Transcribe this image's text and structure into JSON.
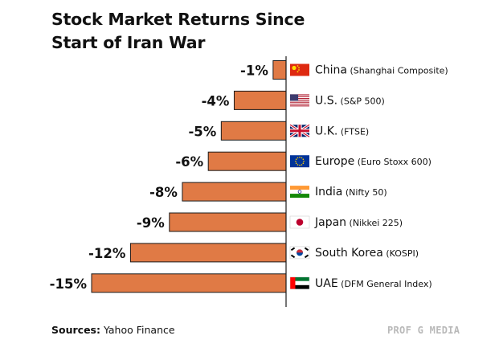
{
  "title": {
    "line1": "Stock Market Returns Since",
    "line2": "Start of Iran War"
  },
  "source": {
    "label": "Sources:",
    "text": "Yahoo Finance"
  },
  "brand": "PROF G MEDIA",
  "colors": {
    "bar": "#e07a45",
    "bar_stroke": "#1a1a1a",
    "axis": "#1a1a1a"
  },
  "chart_data": {
    "type": "bar",
    "orientation": "horizontal",
    "unit": "%",
    "categories": [
      {
        "name": "China",
        "index": "(Shanghai Composite)",
        "flag": "china-flag",
        "label": "-1%"
      },
      {
        "name": "U.S.",
        "index": "(S&P 500)",
        "flag": "us-flag",
        "label": "-4%"
      },
      {
        "name": "U.K.",
        "index": "(FTSE)",
        "flag": "uk-flag",
        "label": "-5%"
      },
      {
        "name": "Europe",
        "index": "(Euro Stoxx 600)",
        "flag": "eu-flag",
        "label": "-6%"
      },
      {
        "name": "India",
        "index": "(Nifty 50)",
        "flag": "india-flag",
        "label": "-8%"
      },
      {
        "name": "Japan",
        "index": "(Nikkei 225)",
        "flag": "japan-flag",
        "label": "-9%"
      },
      {
        "name": "South Korea",
        "index": "(KOSPI)",
        "flag": "south-korea-flag",
        "label": "-12%"
      },
      {
        "name": "UAE",
        "index": "(DFM General Index)",
        "flag": "uae-flag",
        "label": "-15%"
      }
    ],
    "values": [
      -1,
      -4,
      -5,
      -6,
      -8,
      -9,
      -12,
      -15
    ],
    "xlim": [
      -15,
      0
    ],
    "grid": false,
    "legend": "none"
  }
}
